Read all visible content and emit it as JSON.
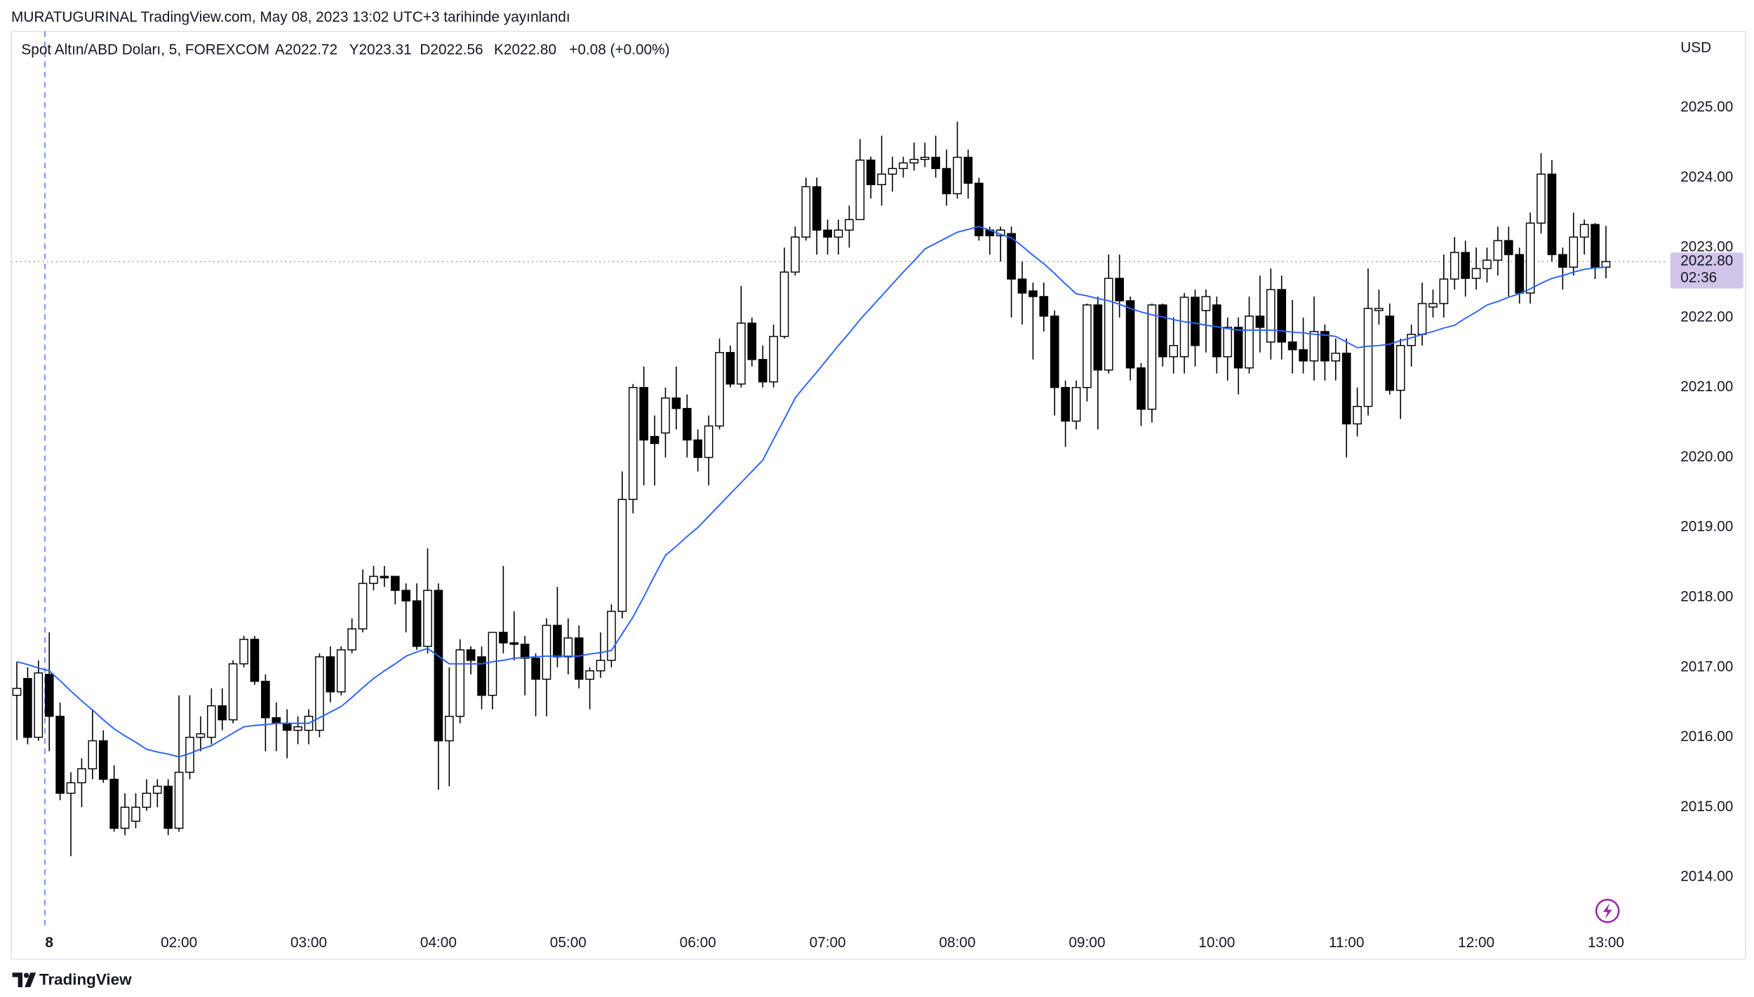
{
  "header": {
    "publisher": "MURATUGURINAL TradingView.com, May 08, 2023 13:02 UTC+3 tarihinde yayınlandı",
    "brand": "TradingView"
  },
  "chart_data": {
    "type": "candlestick",
    "symbol": "Spot Altın/ABD Doları, 5, FOREXCOM",
    "ohlc_labels": [
      "A2022.72",
      "Y2023.31",
      "D2022.56",
      "K2022.80"
    ],
    "change": "+0.08 (+0.00%)",
    "y_axis_label": "USD",
    "last_price": {
      "value": 2022.8,
      "label": "2022.80"
    },
    "countdown": "02:36",
    "up_color": "#ffffff",
    "down_color": "#000000",
    "wick_color": "#000000",
    "ma_color": "#2962ff",
    "grid": false,
    "ylim": [
      2013.31,
      2026.09
    ],
    "yticks": [
      {
        "value": 2014,
        "label": "2014.00"
      },
      {
        "value": 2015,
        "label": "2015.00"
      },
      {
        "value": 2016,
        "label": "2016.00"
      },
      {
        "value": 2017,
        "label": "2017.00"
      },
      {
        "value": 2018,
        "label": "2018.00"
      },
      {
        "value": 2019,
        "label": "2019.00"
      },
      {
        "value": 2020,
        "label": "2020.00"
      },
      {
        "value": 2021,
        "label": "2021.00"
      },
      {
        "value": 2022,
        "label": "2022.00"
      },
      {
        "value": 2023,
        "label": "2023.00"
      },
      {
        "value": 2024,
        "label": "2024.00"
      },
      {
        "value": 2025,
        "label": "2025.00"
      }
    ],
    "categories": [
      null,
      null,
      null,
      "8",
      null,
      null,
      null,
      null,
      null,
      null,
      null,
      null,
      null,
      null,
      null,
      "02:00",
      null,
      null,
      null,
      null,
      null,
      null,
      null,
      null,
      null,
      null,
      null,
      "03:00",
      null,
      null,
      null,
      null,
      null,
      null,
      null,
      null,
      null,
      null,
      null,
      "04:00",
      null,
      null,
      null,
      null,
      null,
      null,
      null,
      null,
      null,
      null,
      null,
      "05:00",
      null,
      null,
      null,
      null,
      null,
      null,
      null,
      null,
      null,
      null,
      null,
      "06:00",
      null,
      null,
      null,
      null,
      null,
      null,
      null,
      null,
      null,
      null,
      null,
      "07:00",
      null,
      null,
      null,
      null,
      null,
      null,
      null,
      null,
      null,
      null,
      null,
      "08:00",
      null,
      null,
      null,
      null,
      null,
      null,
      null,
      null,
      null,
      null,
      null,
      "09:00",
      null,
      null,
      null,
      null,
      null,
      null,
      null,
      null,
      null,
      null,
      null,
      "10:00",
      null,
      null,
      null,
      null,
      null,
      null,
      null,
      null,
      null,
      null,
      null,
      "11:00",
      null,
      null,
      null,
      null,
      null,
      null,
      null,
      null,
      null,
      null,
      null,
      "12:00",
      null,
      null,
      null,
      null,
      null,
      null,
      null,
      null,
      null,
      null,
      null,
      "13:00"
    ],
    "open": [
      2016.6,
      2016.84,
      2016.0,
      2016.9,
      2016.3,
      2015.2,
      2015.35,
      2015.55,
      2015.95,
      2015.4,
      2014.7,
      2014.8,
      2015.0,
      2015.2,
      2015.3,
      2014.7,
      2015.5,
      2016.0,
      2016.0,
      2016.45,
      2016.25,
      2017.05,
      2017.4,
      2016.8,
      2016.28,
      2016.2,
      2016.1,
      2016.1,
      2016.1,
      2017.15,
      2016.65,
      2017.25,
      2017.55,
      2018.2,
      2018.3,
      2018.3,
      2018.1,
      2017.95,
      2017.3,
      2018.1,
      2015.95,
      2016.3,
      2017.25,
      2017.15,
      2016.6,
      2017.5,
      2017.35,
      2017.33,
      2017.13,
      2016.83,
      2017.6,
      2017.15,
      2017.42,
      2016.83,
      2016.95,
      2017.1,
      2017.8,
      2019.4,
      2021.0,
      2020.3,
      2020.35,
      2020.85,
      2020.7,
      2020.25,
      2020.0,
      2020.45,
      2021.5,
      2021.05,
      2021.92,
      2021.4,
      2021.08,
      2021.73,
      2022.65,
      2023.15,
      2023.87,
      2023.25,
      2023.15,
      2023.25,
      2023.4,
      2024.25,
      2023.9,
      2024.05,
      2024.13,
      2024.21,
      2024.26,
      2024.29,
      2024.13,
      2023.77,
      2024.29,
      2023.92,
      2023.25,
      2023.17,
      2023.2,
      2022.55,
      2022.38,
      2022.3,
      2022.02,
      2021.0,
      2020.52,
      2021.0,
      2022.18,
      2021.25,
      2022.56,
      2022.24,
      2021.28,
      2020.69,
      2022.18,
      2021.44,
      2021.44,
      2022.29,
      2022.1,
      2022.18,
      2021.44,
      2021.86,
      2021.28,
      2022.02,
      2021.65,
      2022.4,
      2021.65,
      2021.54,
      2021.38,
      2021.8,
      2021.38,
      2021.49,
      2020.48,
      2020.73,
      2022.1,
      2022.02,
      2020.96,
      2021.6,
      2021.76,
      2022.15,
      2022.2,
      2022.55,
      2022.93,
      2022.56,
      2022.7,
      2022.82,
      2023.1,
      2022.9,
      2022.35,
      2023.35,
      2024.05,
      2022.9,
      2022.72,
      2023.15,
      2023.33,
      2022.72
    ],
    "high": [
      2017.08,
      2017.0,
      2017.1,
      2017.5,
      2016.5,
      2015.5,
      2015.7,
      2016.4,
      2016.1,
      2015.6,
      2015.2,
      2015.2,
      2015.4,
      2015.4,
      2015.4,
      2016.6,
      2016.6,
      2016.3,
      2016.7,
      2016.7,
      2017.1,
      2017.45,
      2017.45,
      2016.9,
      2016.5,
      2016.4,
      2016.3,
      2016.4,
      2017.2,
      2017.3,
      2017.3,
      2017.7,
      2018.4,
      2018.45,
      2018.45,
      2018.3,
      2018.2,
      2018.2,
      2018.7,
      2018.2,
      2017.0,
      2017.4,
      2017.3,
      2017.3,
      2017.5,
      2018.45,
      2017.8,
      2017.45,
      2017.2,
      2017.7,
      2018.15,
      2017.7,
      2017.6,
      2017.0,
      2017.5,
      2017.9,
      2019.8,
      2021.05,
      2021.3,
      2020.6,
      2021.0,
      2021.3,
      2020.9,
      2020.4,
      2020.6,
      2021.7,
      2021.6,
      2022.45,
      2022.0,
      2021.6,
      2021.9,
      2023.0,
      2023.3,
      2024.0,
      2024.0,
      2023.4,
      2023.4,
      2023.6,
      2024.55,
      2024.3,
      2024.6,
      2024.3,
      2024.3,
      2024.5,
      2024.5,
      2024.6,
      2024.4,
      2024.8,
      2024.4,
      2024.0,
      2023.3,
      2023.3,
      2023.3,
      2022.8,
      2022.5,
      2022.5,
      2022.1,
      2021.1,
      2021.1,
      2022.2,
      2022.3,
      2022.9,
      2022.9,
      2022.3,
      2021.35,
      2022.2,
      2022.2,
      2022.0,
      2022.35,
      2022.4,
      2022.4,
      2022.3,
      2022.0,
      2022.0,
      2022.3,
      2022.6,
      2022.7,
      2022.6,
      2022.25,
      2022.0,
      2022.3,
      2021.9,
      2021.7,
      2021.7,
      2021.0,
      2022.7,
      2022.4,
      2022.2,
      2021.7,
      2021.9,
      2022.5,
      2022.4,
      2022.9,
      2023.15,
      2023.1,
      2023.0,
      2023.0,
      2023.3,
      2023.3,
      2023.0,
      2023.5,
      2024.35,
      2024.25,
      2023.0,
      2023.5,
      2023.4,
      2023.35,
      2023.31
    ],
    "low": [
      2015.96,
      2015.9,
      2015.95,
      2015.8,
      2015.1,
      2014.3,
      2015.0,
      2015.4,
      2015.35,
      2014.65,
      2014.6,
      2014.7,
      2014.95,
      2015.0,
      2014.6,
      2014.65,
      2015.4,
      2015.8,
      2015.9,
      2016.1,
      2016.2,
      2017.0,
      2016.75,
      2015.8,
      2015.8,
      2015.7,
      2015.9,
      2015.9,
      2016.0,
      2016.5,
      2016.6,
      2017.2,
      2017.5,
      2018.1,
      2018.15,
      2017.9,
      2017.5,
      2017.25,
      2017.2,
      2015.25,
      2015.3,
      2016.2,
      2016.9,
      2016.4,
      2016.4,
      2017.2,
      2017.1,
      2016.6,
      2016.3,
      2016.3,
      2017.0,
      2016.9,
      2016.7,
      2016.4,
      2016.85,
      2017.0,
      2017.7,
      2019.2,
      2019.6,
      2019.6,
      2020.0,
      2020.4,
      2020.0,
      2019.8,
      2019.6,
      2020.4,
      2021.0,
      2021.0,
      2021.3,
      2021.0,
      2021.0,
      2021.7,
      2022.6,
      2023.1,
      2022.9,
      2022.9,
      2022.9,
      2023.0,
      2023.4,
      2023.7,
      2023.6,
      2023.8,
      2024.0,
      2024.1,
      2024.15,
      2024.0,
      2023.6,
      2023.7,
      2023.7,
      2023.1,
      2022.9,
      2022.8,
      2022.0,
      2021.9,
      2021.4,
      2021.8,
      2020.6,
      2020.15,
      2020.4,
      2020.8,
      2020.4,
      2021.2,
      2022.0,
      2021.1,
      2020.45,
      2020.5,
      2021.3,
      2021.2,
      2021.2,
      2021.3,
      2021.5,
      2021.2,
      2021.1,
      2020.9,
      2021.2,
      2021.5,
      2021.4,
      2021.4,
      2021.2,
      2021.2,
      2021.1,
      2021.1,
      2021.1,
      2020.0,
      2020.3,
      2020.6,
      2021.9,
      2020.9,
      2020.55,
      2021.3,
      2021.6,
      2022.0,
      2022.0,
      2022.4,
      2022.3,
      2022.4,
      2022.5,
      2022.6,
      2022.3,
      2022.2,
      2022.2,
      2023.2,
      2022.8,
      2022.4,
      2022.6,
      2022.9,
      2022.55,
      2022.56
    ],
    "close": [
      2016.7,
      2016.0,
      2016.92,
      2016.3,
      2015.2,
      2015.35,
      2015.55,
      2015.95,
      2015.4,
      2014.7,
      2015.0,
      2015.0,
      2015.2,
      2015.3,
      2014.7,
      2015.5,
      2016.0,
      2016.05,
      2016.45,
      2016.25,
      2017.05,
      2017.4,
      2016.8,
      2016.28,
      2016.2,
      2016.1,
      2016.15,
      2016.3,
      2017.15,
      2016.65,
      2017.25,
      2017.55,
      2018.2,
      2018.3,
      2018.28,
      2018.1,
      2017.95,
      2017.3,
      2018.1,
      2015.95,
      2016.3,
      2017.25,
      2017.1,
      2016.6,
      2017.5,
      2017.35,
      2017.33,
      2017.13,
      2016.83,
      2017.6,
      2017.15,
      2017.42,
      2016.83,
      2016.95,
      2017.1,
      2017.8,
      2019.4,
      2021.0,
      2020.25,
      2020.2,
      2020.85,
      2020.7,
      2020.25,
      2020.0,
      2020.45,
      2021.5,
      2021.05,
      2021.92,
      2021.4,
      2021.08,
      2021.73,
      2022.65,
      2023.15,
      2023.87,
      2023.25,
      2023.15,
      2023.25,
      2023.4,
      2024.25,
      2023.9,
      2024.05,
      2024.13,
      2024.21,
      2024.26,
      2024.29,
      2024.13,
      2023.77,
      2024.29,
      2023.92,
      2023.17,
      2023.17,
      2023.25,
      2022.55,
      2022.35,
      2022.3,
      2022.02,
      2021.0,
      2020.52,
      2021.0,
      2022.18,
      2021.25,
      2022.56,
      2022.24,
      2021.28,
      2020.69,
      2022.18,
      2021.44,
      2021.6,
      2022.29,
      2021.6,
      2022.3,
      2021.44,
      2021.86,
      2021.28,
      2022.02,
      2021.86,
      2022.4,
      2021.65,
      2021.54,
      2021.38,
      2021.8,
      2021.38,
      2021.49,
      2020.48,
      2020.73,
      2022.13,
      2022.13,
      2020.96,
      2021.6,
      2021.76,
      2022.2,
      2022.2,
      2022.55,
      2022.93,
      2022.56,
      2022.7,
      2022.82,
      2023.1,
      2022.9,
      2022.35,
      2023.35,
      2024.05,
      2022.9,
      2022.72,
      2023.15,
      2023.33,
      2022.72,
      2022.8
    ],
    "ma_values": [
      2017.08,
      2017.04,
      2016.99,
      2016.95,
      2016.81,
      2016.66,
      2016.52,
      2016.39,
      2016.25,
      2016.12,
      2016.02,
      2015.93,
      2015.83,
      2015.79,
      2015.76,
      2015.72,
      2015.77,
      2015.83,
      2015.88,
      2015.97,
      2016.06,
      2016.15,
      2016.17,
      2016.18,
      2016.2,
      2016.2,
      2016.2,
      2016.2,
      2016.28,
      2016.36,
      2016.44,
      2016.57,
      2016.71,
      2016.84,
      2016.95,
      2017.05,
      2017.16,
      2017.22,
      2017.27,
      2017.16,
      2017.05,
      2017.05,
      2017.05,
      2017.05,
      2017.08,
      2017.1,
      2017.13,
      2017.14,
      2017.15,
      2017.16,
      2017.16,
      2017.16,
      2017.16,
      2017.19,
      2017.21,
      2017.24,
      2017.48,
      2017.72,
      2018.01,
      2018.31,
      2018.6,
      2018.73,
      2018.87,
      2019.0,
      2019.16,
      2019.32,
      2019.48,
      2019.64,
      2019.8,
      2019.96,
      2020.26,
      2020.55,
      2020.85,
      2021.04,
      2021.22,
      2021.41,
      2021.6,
      2021.78,
      2021.97,
      2022.14,
      2022.31,
      2022.48,
      2022.65,
      2022.81,
      2022.98,
      2023.06,
      2023.14,
      2023.22,
      2023.26,
      2023.3,
      2023.25,
      2023.19,
      2023.14,
      2023.02,
      2022.89,
      2022.77,
      2022.63,
      2022.48,
      2022.34,
      2022.31,
      2022.27,
      2022.24,
      2022.19,
      2022.13,
      2022.08,
      2022.04,
      2022.01,
      2021.97,
      2021.94,
      2021.92,
      2021.89,
      2021.87,
      2021.84,
      2021.82,
      2021.82,
      2021.82,
      2021.82,
      2021.81,
      2021.79,
      2021.78,
      2021.76,
      2021.75,
      2021.73,
      2021.65,
      2021.57,
      2021.59,
      2021.6,
      2021.62,
      2021.67,
      2021.71,
      2021.76,
      2021.8,
      2021.85,
      2021.89,
      2021.99,
      2022.08,
      2022.18,
      2022.23,
      2022.29,
      2022.34,
      2022.41,
      2022.49,
      2022.56,
      2022.6,
      2022.65,
      2022.69,
      2022.71,
      2022.72
    ]
  }
}
